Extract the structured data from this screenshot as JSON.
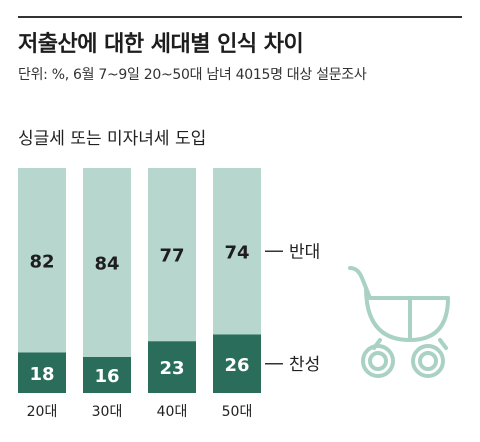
{
  "header": {
    "title": "저출산에 대한 세대별 인식 차이",
    "subtitle": "단위: %, 6월 7~9일 20~50대 남녀 4015명 대상 설문조사"
  },
  "colors": {
    "against": "#b7d6cd",
    "for": "#2a6d5a",
    "stroller": "#a9d1c4"
  },
  "icon": "baby-stroller-icon",
  "chart_data": {
    "type": "bar",
    "stacked": true,
    "title": "싱글세 또는 미자녀세 도입",
    "categories": [
      "20대",
      "30대",
      "40대",
      "50대"
    ],
    "series": [
      {
        "name": "찬성",
        "values": [
          18,
          16,
          23,
          26
        ]
      },
      {
        "name": "반대",
        "values": [
          82,
          84,
          77,
          74
        ]
      }
    ],
    "ylim": [
      0,
      100
    ],
    "grid": false,
    "legend": "right"
  }
}
